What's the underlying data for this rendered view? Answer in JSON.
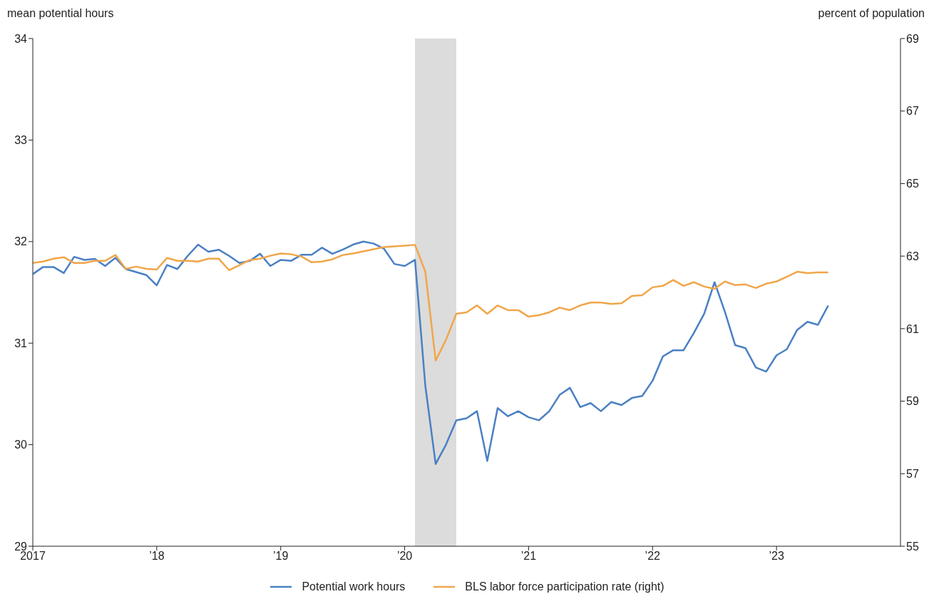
{
  "chart_data": {
    "type": "line",
    "ylabel": "mean potential hours",
    "y2label": "percent of population",
    "x": [
      "2017-01",
      "2017-02",
      "2017-03",
      "2017-04",
      "2017-05",
      "2017-06",
      "2017-07",
      "2017-08",
      "2017-09",
      "2017-10",
      "2017-11",
      "2017-12",
      "2018-01",
      "2018-02",
      "2018-03",
      "2018-04",
      "2018-05",
      "2018-06",
      "2018-07",
      "2018-08",
      "2018-09",
      "2018-10",
      "2018-11",
      "2018-12",
      "2019-01",
      "2019-02",
      "2019-03",
      "2019-04",
      "2019-05",
      "2019-06",
      "2019-07",
      "2019-08",
      "2019-09",
      "2019-10",
      "2019-11",
      "2019-12",
      "2020-01",
      "2020-02",
      "2020-03",
      "2020-04",
      "2020-05",
      "2020-06",
      "2020-07",
      "2020-08",
      "2020-09",
      "2020-10",
      "2020-11",
      "2020-12",
      "2021-01",
      "2021-02",
      "2021-03",
      "2021-04",
      "2021-05",
      "2021-06",
      "2021-07",
      "2021-08",
      "2021-09",
      "2021-10",
      "2021-11",
      "2021-12",
      "2022-01",
      "2022-02",
      "2022-03",
      "2022-04",
      "2022-05",
      "2022-06",
      "2022-07",
      "2022-08",
      "2022-09",
      "2022-10",
      "2022-11",
      "2022-12",
      "2023-01",
      "2023-02",
      "2023-03",
      "2023-04",
      "2023-05",
      "2023-06"
    ],
    "series": [
      {
        "name": "Potential work hours",
        "color": "#4a80c4",
        "values": [
          31.68,
          31.75,
          31.75,
          31.69,
          31.85,
          31.82,
          31.83,
          31.76,
          31.84,
          31.73,
          31.7,
          31.67,
          31.57,
          31.77,
          31.73,
          31.86,
          31.97,
          31.9,
          31.92,
          31.86,
          31.79,
          31.81,
          31.88,
          31.76,
          31.82,
          31.81,
          31.87,
          31.87,
          31.94,
          31.88,
          31.92,
          31.97,
          32.0,
          31.98,
          31.93,
          31.78,
          31.76,
          31.82,
          30.58,
          29.81,
          30.0,
          30.24,
          30.26,
          30.33,
          29.84,
          30.36,
          30.28,
          30.33,
          30.27,
          30.24,
          30.33,
          30.49,
          30.56,
          30.37,
          30.41,
          30.33,
          30.42,
          30.39,
          30.46,
          30.48,
          30.63,
          30.87,
          30.93,
          30.93,
          31.1,
          31.29,
          31.6,
          31.31,
          30.98,
          30.95,
          30.76,
          30.72,
          30.88,
          30.94,
          31.13,
          31.21,
          31.18,
          31.37
        ]
      },
      {
        "name": "BLS labor force participation rate (right)",
        "color": "#f0a64a",
        "axis": "y2",
        "values": [
          62.81,
          62.85,
          62.93,
          62.97,
          62.81,
          62.81,
          62.87,
          62.87,
          63.03,
          62.65,
          62.71,
          62.65,
          62.63,
          62.95,
          62.87,
          62.87,
          62.85,
          62.93,
          62.93,
          62.61,
          62.75,
          62.89,
          62.93,
          63.01,
          63.07,
          63.05,
          62.99,
          62.83,
          62.85,
          62.91,
          63.03,
          63.07,
          63.13,
          63.19,
          63.25,
          63.27,
          63.29,
          63.31,
          62.57,
          60.12,
          60.69,
          61.41,
          61.45,
          61.64,
          61.41,
          61.64,
          61.51,
          61.51,
          61.33,
          61.37,
          61.45,
          61.58,
          61.51,
          61.64,
          61.72,
          61.72,
          61.68,
          61.7,
          61.9,
          61.92,
          62.14,
          62.18,
          62.34,
          62.18,
          62.28,
          62.16,
          62.1,
          62.3,
          62.2,
          62.22,
          62.12,
          62.24,
          62.3,
          62.43,
          62.57,
          62.53,
          62.55,
          62.55
        ]
      }
    ],
    "xlim": [
      "2017-01",
      "2024-01"
    ],
    "xticks": [
      {
        "value": "2017-01",
        "label": "2017"
      },
      {
        "value": "2018-01",
        "label": "’18"
      },
      {
        "value": "2019-01",
        "label": "’19"
      },
      {
        "value": "2020-01",
        "label": "’20"
      },
      {
        "value": "2021-01",
        "label": "’21"
      },
      {
        "value": "2022-01",
        "label": "’22"
      },
      {
        "value": "2023-01",
        "label": "’23"
      }
    ],
    "ylim": [
      29,
      34
    ],
    "yticks": [
      29,
      30,
      31,
      32,
      33,
      34
    ],
    "y2lim": [
      55,
      69
    ],
    "y2ticks": [
      55,
      57,
      59,
      61,
      63,
      65,
      67,
      69
    ],
    "bands": [
      {
        "axis": "x",
        "from": "2020-02",
        "to": "2020-06",
        "color": "#dcdcdc"
      }
    ],
    "grid": false,
    "legend": "bottom",
    "marker": "none",
    "line_style": "solid"
  }
}
